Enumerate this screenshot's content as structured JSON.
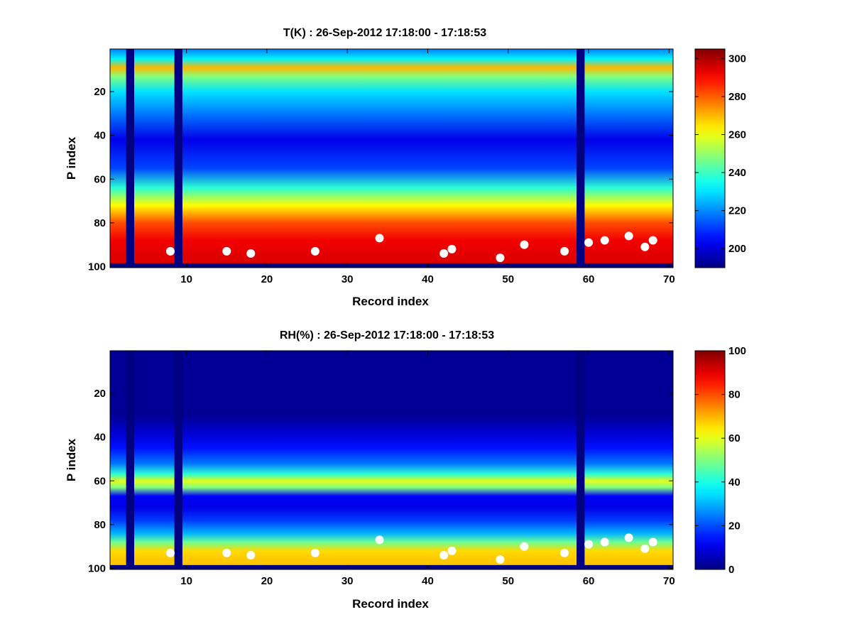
{
  "chart_data": [
    {
      "type": "heatmap",
      "title": "T(K) : 26-Sep-2012 17:18:00 - 17:18:53",
      "xlabel": "Record index",
      "ylabel": "P index",
      "xlim": [
        0.5,
        70.5
      ],
      "ylim": [
        0.5,
        100.5
      ],
      "y_reversed": true,
      "xticks": [
        10,
        20,
        30,
        40,
        50,
        60,
        70
      ],
      "yticks": [
        20,
        40,
        60,
        80,
        100
      ],
      "colormap": "jet",
      "colorbar": {
        "range": [
          190,
          305
        ],
        "ticks": [
          200,
          220,
          240,
          260,
          280,
          300
        ]
      },
      "missing_records": [
        3,
        9,
        59
      ],
      "profile_rows": [
        {
          "p": 1,
          "value": 220
        },
        {
          "p": 5,
          "value": 232
        },
        {
          "p": 9,
          "value": 270
        },
        {
          "p": 13,
          "value": 248
        },
        {
          "p": 20,
          "value": 230
        },
        {
          "p": 30,
          "value": 218
        },
        {
          "p": 42,
          "value": 202
        },
        {
          "p": 55,
          "value": 212
        },
        {
          "p": 64,
          "value": 238
        },
        {
          "p": 72,
          "value": 262
        },
        {
          "p": 80,
          "value": 282
        },
        {
          "p": 88,
          "value": 292
        },
        {
          "p": 95,
          "value": 294
        },
        {
          "p": 98,
          "value": 294
        }
      ],
      "surface_points": [
        {
          "record": 8,
          "p": 93
        },
        {
          "record": 15,
          "p": 93
        },
        {
          "record": 18,
          "p": 94
        },
        {
          "record": 26,
          "p": 93
        },
        {
          "record": 34,
          "p": 87
        },
        {
          "record": 42,
          "p": 94
        },
        {
          "record": 43,
          "p": 92
        },
        {
          "record": 49,
          "p": 96
        },
        {
          "record": 52,
          "p": 90
        },
        {
          "record": 57,
          "p": 93
        },
        {
          "record": 60,
          "p": 89
        },
        {
          "record": 62,
          "p": 88
        },
        {
          "record": 65,
          "p": 86
        },
        {
          "record": 67,
          "p": 91
        },
        {
          "record": 68,
          "p": 88
        }
      ]
    },
    {
      "type": "heatmap",
      "title": "RH(%) : 26-Sep-2012 17:18:00 - 17:18:53",
      "xlabel": "Record index",
      "ylabel": "P index",
      "xlim": [
        0.5,
        70.5
      ],
      "ylim": [
        0.5,
        100.5
      ],
      "y_reversed": true,
      "xticks": [
        10,
        20,
        30,
        40,
        50,
        60,
        70
      ],
      "yticks": [
        20,
        40,
        60,
        80,
        100
      ],
      "colormap": "jet",
      "colorbar": {
        "range": [
          0,
          100
        ],
        "ticks": [
          0,
          20,
          40,
          60,
          80,
          100
        ]
      },
      "missing_records": [
        3,
        9,
        59
      ],
      "profile_rows": [
        {
          "p": 1,
          "value": 2
        },
        {
          "p": 30,
          "value": 2
        },
        {
          "p": 38,
          "value": 8
        },
        {
          "p": 45,
          "value": 14
        },
        {
          "p": 52,
          "value": 24
        },
        {
          "p": 57,
          "value": 42
        },
        {
          "p": 60,
          "value": 60
        },
        {
          "p": 63,
          "value": 50
        },
        {
          "p": 67,
          "value": 12
        },
        {
          "p": 72,
          "value": 10
        },
        {
          "p": 78,
          "value": 18
        },
        {
          "p": 84,
          "value": 30
        },
        {
          "p": 88,
          "value": 48
        },
        {
          "p": 92,
          "value": 66
        },
        {
          "p": 96,
          "value": 68
        },
        {
          "p": 98,
          "value": 68
        }
      ],
      "surface_points": [
        {
          "record": 8,
          "p": 93
        },
        {
          "record": 15,
          "p": 93
        },
        {
          "record": 18,
          "p": 94
        },
        {
          "record": 26,
          "p": 93
        },
        {
          "record": 34,
          "p": 87
        },
        {
          "record": 42,
          "p": 94
        },
        {
          "record": 43,
          "p": 92
        },
        {
          "record": 49,
          "p": 96
        },
        {
          "record": 52,
          "p": 90
        },
        {
          "record": 57,
          "p": 93
        },
        {
          "record": 60,
          "p": 89
        },
        {
          "record": 62,
          "p": 88
        },
        {
          "record": 65,
          "p": 86
        },
        {
          "record": 67,
          "p": 91
        },
        {
          "record": 68,
          "p": 88
        }
      ]
    }
  ]
}
